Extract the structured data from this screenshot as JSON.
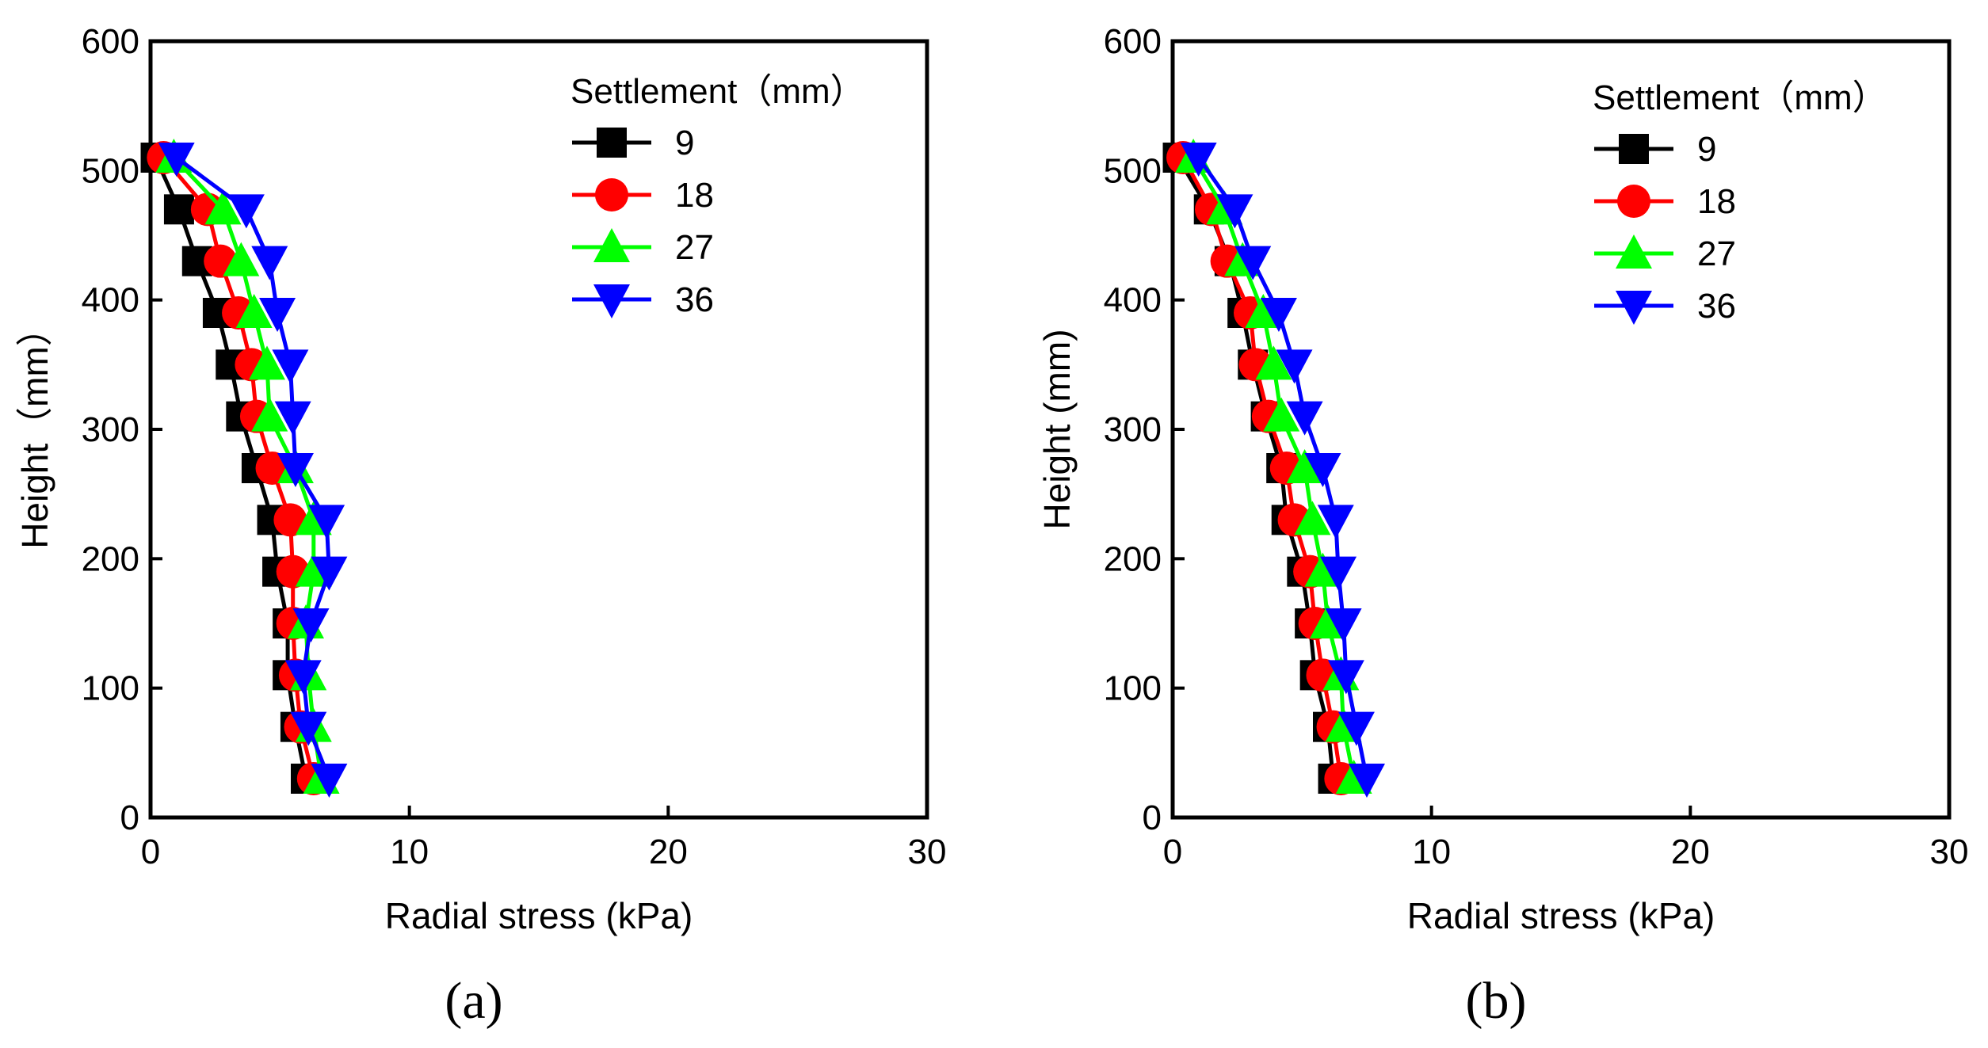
{
  "chart_data": [
    {
      "type": "line",
      "panel_label": "(a)",
      "xlabel": "Radial stress (kPa)",
      "ylabel": "Height（mm）",
      "xlim": [
        0,
        30
      ],
      "ylim": [
        0,
        600
      ],
      "xticks": [
        "0",
        "10",
        "20",
        "30"
      ],
      "yticks": [
        "0",
        "100",
        "200",
        "300",
        "400",
        "500",
        "600"
      ],
      "legend": {
        "title": "Settlement（mm）",
        "position": "top-right"
      },
      "y": [
        30,
        70,
        110,
        150,
        190,
        230,
        270,
        310,
        350,
        390,
        430,
        470,
        510
      ],
      "series": [
        {
          "name": "9",
          "color": "#000000",
          "marker": "square",
          "x": [
            6.0,
            5.6,
            5.3,
            5.3,
            4.9,
            4.7,
            4.1,
            3.5,
            3.1,
            2.6,
            1.8,
            1.1,
            0.2
          ]
        },
        {
          "name": "18",
          "color": "#ff0000",
          "marker": "circle",
          "x": [
            6.3,
            5.8,
            5.6,
            5.5,
            5.5,
            5.4,
            4.7,
            4.1,
            3.9,
            3.4,
            2.7,
            2.2,
            0.5
          ]
        },
        {
          "name": "27",
          "color": "#00ff00",
          "marker": "triangle-up",
          "x": [
            6.6,
            6.3,
            6.1,
            6.0,
            6.3,
            6.3,
            5.6,
            4.6,
            4.5,
            4.0,
            3.5,
            2.8,
            0.9
          ]
        },
        {
          "name": "36",
          "color": "#0000ff",
          "marker": "triangle-down",
          "x": [
            6.9,
            6.1,
            5.9,
            6.2,
            6.9,
            6.8,
            5.6,
            5.5,
            5.4,
            4.9,
            4.6,
            3.7,
            1.0
          ]
        }
      ]
    },
    {
      "type": "line",
      "panel_label": "(b)",
      "xlabel": "Radial stress (kPa)",
      "ylabel": "Height (mm)",
      "xlim": [
        0,
        30
      ],
      "ylim": [
        0,
        600
      ],
      "xticks": [
        "0",
        "10",
        "20",
        "30"
      ],
      "yticks": [
        "0",
        "100",
        "200",
        "300",
        "400",
        "500",
        "600"
      ],
      "legend": {
        "title": "Settlement（mm）",
        "position": "top-right"
      },
      "y": [
        30,
        70,
        110,
        150,
        190,
        230,
        270,
        310,
        350,
        390,
        430,
        470,
        510
      ],
      "series": [
        {
          "name": "9",
          "color": "#000000",
          "marker": "square",
          "x": [
            6.2,
            6.0,
            5.5,
            5.3,
            5.0,
            4.4,
            4.2,
            3.6,
            3.1,
            2.7,
            2.2,
            1.4,
            0.2
          ]
        },
        {
          "name": "18",
          "color": "#ff0000",
          "marker": "circle",
          "x": [
            6.5,
            6.2,
            5.8,
            5.5,
            5.3,
            4.7,
            4.4,
            3.7,
            3.2,
            3.0,
            2.1,
            1.5,
            0.4
          ]
        },
        {
          "name": "27",
          "color": "#00ff00",
          "marker": "triangle-up",
          "x": [
            7.0,
            6.6,
            6.5,
            6.0,
            5.8,
            5.4,
            5.1,
            4.2,
            3.9,
            3.5,
            2.7,
            2.0,
            0.8
          ]
        },
        {
          "name": "36",
          "color": "#0000ff",
          "marker": "triangle-down",
          "x": [
            7.5,
            7.1,
            6.7,
            6.6,
            6.4,
            6.3,
            5.8,
            5.1,
            4.7,
            4.1,
            3.1,
            2.4,
            1.0
          ]
        }
      ]
    }
  ]
}
